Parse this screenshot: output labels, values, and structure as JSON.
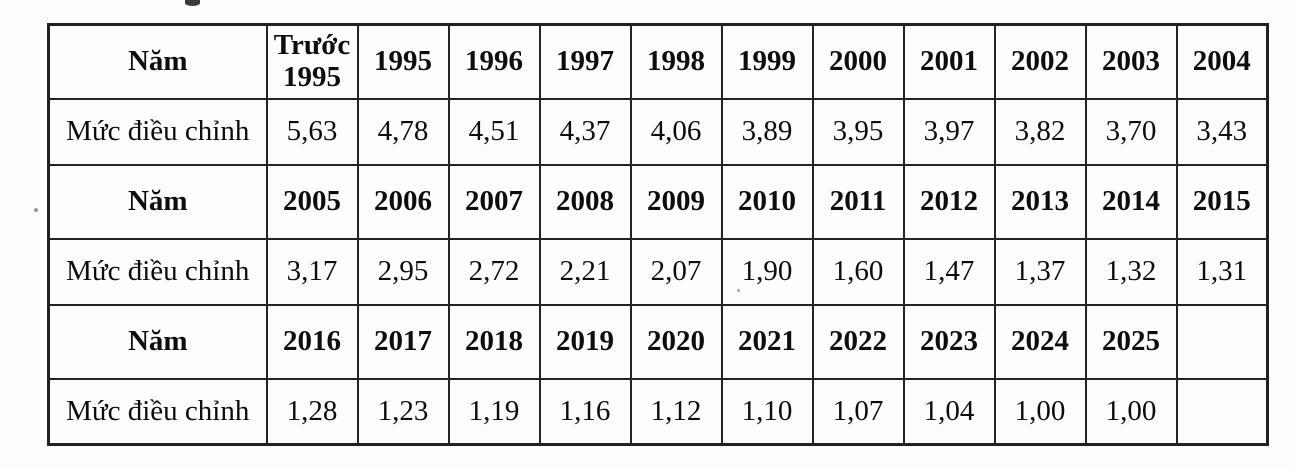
{
  "page": {
    "background_color": "#fdfdfc",
    "line_color": "#242424",
    "text_color": "#0d0d0d"
  },
  "table": {
    "year_row_label": "Năm",
    "value_row_label": "Mức điều chỉnh",
    "sections": [
      {
        "years": [
          "Trước 1995",
          "1995",
          "1996",
          "1997",
          "1998",
          "1999",
          "2000",
          "2001",
          "2002",
          "2003",
          "2004"
        ],
        "values": [
          "5,63",
          "4,78",
          "4,51",
          "4,37",
          "4,06",
          "3,89",
          "3,95",
          "3,97",
          "3,82",
          "3,70",
          "3,43"
        ]
      },
      {
        "years": [
          "2005",
          "2006",
          "2007",
          "2008",
          "2009",
          "2010",
          "2011",
          "2012",
          "2013",
          "2014",
          "2015"
        ],
        "values": [
          "3,17",
          "2,95",
          "2,72",
          "2,21",
          "2,07",
          "1,90",
          "1,60",
          "1,47",
          "1,37",
          "1,32",
          "1,31"
        ]
      },
      {
        "years": [
          "2016",
          "2017",
          "2018",
          "2019",
          "2020",
          "2021",
          "2022",
          "2023",
          "2024",
          "2025",
          ""
        ],
        "values": [
          "1,28",
          "1,23",
          "1,19",
          "1,16",
          "1,12",
          "1,10",
          "1,07",
          "1,04",
          "1,00",
          "1,00",
          ""
        ]
      }
    ]
  }
}
